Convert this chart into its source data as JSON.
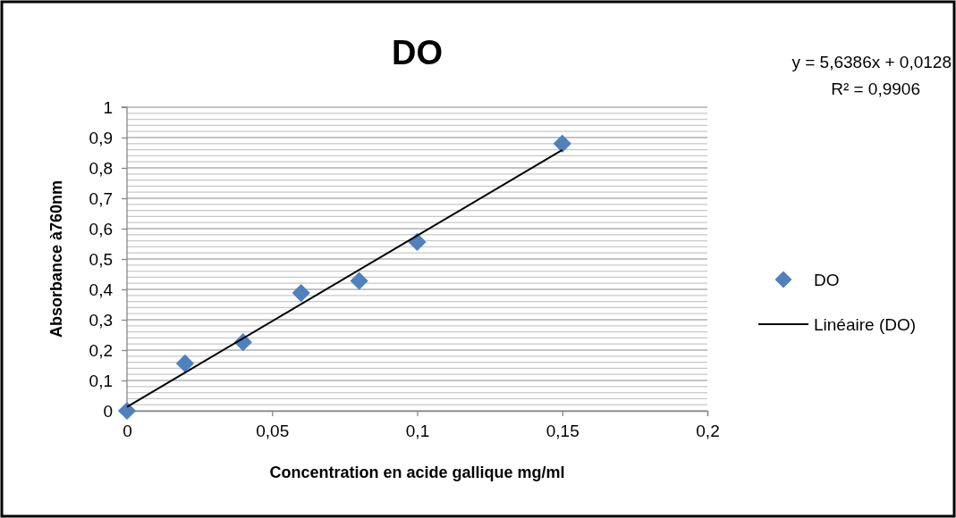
{
  "chart_data": {
    "type": "scatter",
    "title": "DO",
    "xlabel": "Concentration en acide gallique mg/ml",
    "ylabel": "Absorbance à760nm",
    "annotations": [
      "y = 5,6386x + 0,0128",
      "R² = 0,9906"
    ],
    "xlim": [
      0,
      0.2
    ],
    "xticks": [
      0,
      {
        "value": 0.05,
        "label": "0,05"
      },
      {
        "value": 0.1,
        "label": "0,1"
      },
      {
        "value": 0.15,
        "label": "0,15"
      },
      {
        "value": 0.2,
        "label": "0,2"
      }
    ],
    "ylim": [
      0,
      1
    ],
    "yticks": [
      0,
      {
        "value": 0.1,
        "label": "0,1"
      },
      {
        "value": 0.2,
        "label": "0,2"
      },
      {
        "value": 0.3,
        "label": "0,3"
      },
      {
        "value": 0.4,
        "label": "0,4"
      },
      {
        "value": 0.5,
        "label": "0,5"
      },
      {
        "value": 0.6,
        "label": "0,6"
      },
      {
        "value": 0.7,
        "label": "0,7"
      },
      {
        "value": 0.8,
        "label": "0,8"
      },
      {
        "value": 0.9,
        "label": "0,9"
      },
      1
    ],
    "grid": "y",
    "legend": "right",
    "series": [
      {
        "name": "DO",
        "color": "#4f81bd",
        "marker": "diamond",
        "x": [
          0,
          0.02,
          0.04,
          0.06,
          0.08,
          0.1,
          0.15
        ],
        "values": [
          0,
          0.156,
          0.226,
          0.388,
          0.428,
          0.556,
          0.88
        ]
      },
      {
        "name": "Linéaire (DO)",
        "type": "line",
        "color": "#000000",
        "line_style": "solid",
        "marker": "none",
        "x": [
          0,
          0.15
        ],
        "values": [
          0.013,
          0.859
        ]
      }
    ]
  }
}
